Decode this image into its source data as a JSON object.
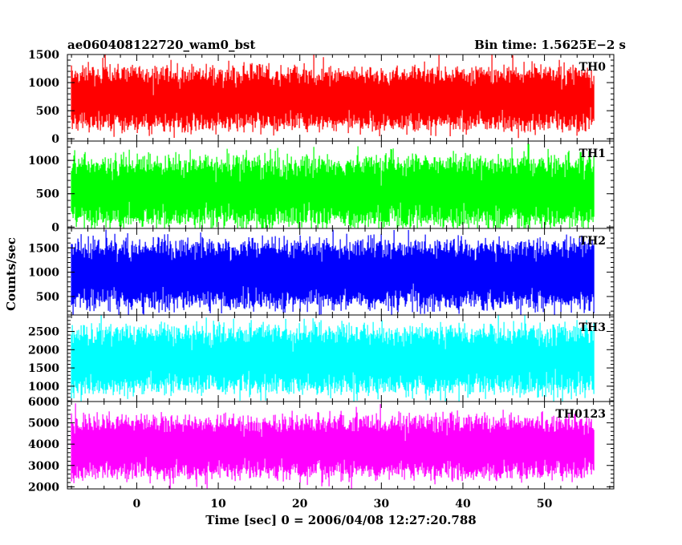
{
  "header": {
    "left_title": "ae060408122720_wam0_bst",
    "right_title": "Bin time: 1.5625E−2 s"
  },
  "chart_data": {
    "type": "line",
    "title": "ae060408122720_wam0_bst",
    "subtitle": "Bin time: 1.5625E−2 s",
    "xlabel": "Time [sec] 0 = 2006/04/08 12:27:20.788",
    "ylabel": "Counts/sec",
    "xlim": [
      -8.5,
      58.5
    ],
    "x_data_range": [
      -8,
      56
    ],
    "xticks_major": [
      0,
      10,
      20,
      30,
      40,
      50
    ],
    "xtick_labels": [
      "0",
      "10",
      "20",
      "30",
      "40",
      "50"
    ],
    "x_minor_step": 2,
    "grid": false,
    "legend": "none",
    "panels": [
      {
        "name": "TH0",
        "color": "#ff0000",
        "ylim": [
          -40,
          1500
        ],
        "yticks": [
          0,
          500,
          1000,
          1500
        ],
        "ytick_labels": [
          "0",
          "500",
          "1000",
          "1500"
        ],
        "y_minor_step": 100,
        "approx_range": [
          0,
          1500
        ],
        "approx_typical": [
          280,
          1150
        ]
      },
      {
        "name": "TH1",
        "color": "#00ff00",
        "ylim": [
          -20,
          1290
        ],
        "yticks": [
          0,
          500,
          1000
        ],
        "ytick_labels": [
          "0",
          "500",
          "1000"
        ],
        "y_minor_step": 100,
        "approx_range": [
          0,
          1290
        ],
        "approx_typical": [
          120,
          950
        ]
      },
      {
        "name": "TH2",
        "color": "#0000ff",
        "ylim": [
          120,
          1900
        ],
        "yticks": [
          500,
          1000,
          1500
        ],
        "ytick_labels": [
          "500",
          "1000",
          "1500"
        ],
        "y_minor_step": 100,
        "approx_range": [
          120,
          1900
        ],
        "approx_typical": [
          400,
          1500
        ]
      },
      {
        "name": "TH3",
        "color": "#00ffff",
        "ylim": [
          580,
          2950
        ],
        "yticks": [
          1000,
          1500,
          2000,
          2500
        ],
        "ytick_labels": [
          "1000",
          "1500",
          "2000",
          "2500"
        ],
        "y_minor_step": 100,
        "approx_range": [
          600,
          2950
        ],
        "approx_typical": [
          1000,
          2450
        ]
      },
      {
        "name": "TH0123",
        "color": "#ff00ff",
        "ylim": [
          1900,
          6000
        ],
        "yticks": [
          2000,
          3000,
          4000,
          5000,
          6000
        ],
        "ytick_labels": [
          "2000",
          "3000",
          "4000",
          "5000",
          "6000"
        ],
        "y_minor_step": 200,
        "approx_range": [
          1950,
          5900
        ],
        "approx_typical": [
          2700,
          5000
        ]
      }
    ]
  }
}
